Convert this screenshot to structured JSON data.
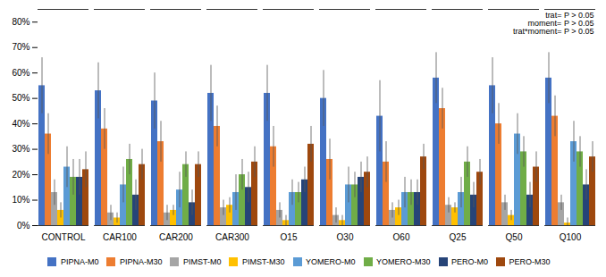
{
  "chart_data": {
    "type": "bar",
    "categories": [
      "CONTROL",
      "CAR100",
      "CAR200",
      "CAR300",
      "O15",
      "O30",
      "O60",
      "Q25",
      "Q50",
      "Q100"
    ],
    "series": [
      {
        "name": "PIPNA-M0",
        "color": "#4472C4",
        "values": [
          55,
          53,
          49,
          52,
          52,
          50,
          43,
          58,
          55,
          58
        ],
        "errors": [
          11,
          11,
          11,
          11,
          11,
          11,
          14,
          10,
          11,
          10
        ]
      },
      {
        "name": "PIPNA-M30",
        "color": "#ED7D31",
        "values": [
          36,
          38,
          33,
          39,
          31,
          26,
          25,
          46,
          40,
          43
        ],
        "errors": [
          8,
          8,
          8,
          8,
          8,
          8,
          8,
          8,
          8,
          8
        ]
      },
      {
        "name": "PIMST-M0",
        "color": "#A5A5A5",
        "values": [
          13,
          5,
          5,
          7,
          6,
          4,
          6,
          8,
          9,
          9
        ],
        "errors": [
          5,
          3,
          3,
          3,
          3,
          3,
          3,
          3,
          3,
          3
        ]
      },
      {
        "name": "PIMST-M30",
        "color": "#FFC000",
        "values": [
          6,
          3,
          6,
          8,
          2,
          2,
          7,
          7,
          4,
          1
        ],
        "errors": [
          3,
          2,
          2,
          3,
          2,
          2,
          3,
          2,
          2,
          2
        ]
      },
      {
        "name": "YOMERO-M0",
        "color": "#5B9BD5",
        "values": [
          23,
          16,
          14,
          13,
          13,
          16,
          13,
          13,
          36,
          33
        ],
        "errors": [
          8,
          7,
          7,
          7,
          5,
          7,
          6,
          6,
          8,
          8
        ]
      },
      {
        "name": "YOMERO-M30",
        "color": "#70AD47",
        "values": [
          19,
          26,
          24,
          20,
          13,
          16,
          13,
          25,
          29,
          29
        ],
        "errors": [
          7,
          6,
          5,
          6,
          4,
          5,
          5,
          6,
          6,
          6
        ]
      },
      {
        "name": "PERO-M0",
        "color": "#264478",
        "values": [
          19,
          12,
          9,
          15,
          18,
          19,
          13,
          12,
          12,
          16
        ],
        "errors": [
          7,
          6,
          5,
          6,
          5,
          6,
          5,
          5,
          5,
          6
        ]
      },
      {
        "name": "PERO-M30",
        "color": "#9E480E",
        "values": [
          22,
          24,
          24,
          25,
          32,
          21,
          27,
          21,
          23,
          27
        ],
        "errors": [
          7,
          6,
          5,
          6,
          7,
          6,
          5,
          5,
          6,
          6
        ]
      }
    ],
    "ylim": [
      0,
      85
    ],
    "yticks": [
      {
        "value": 0,
        "label": "0%"
      },
      {
        "value": 10,
        "label": "10%"
      },
      {
        "value": 20,
        "label": "20%"
      },
      {
        "value": 30,
        "label": "30%"
      },
      {
        "value": 40,
        "label": "40%"
      },
      {
        "value": 50,
        "label": "50%"
      },
      {
        "value": 60,
        "label": "60%"
      },
      {
        "value": 70,
        "label": "70%"
      },
      {
        "value": 80,
        "label": "80%"
      }
    ],
    "annotation": "trat= P > 0.05\nmoment= P > 0.05\ntrat*moment= P > 0.05",
    "grid": false,
    "legend": "bottom"
  }
}
